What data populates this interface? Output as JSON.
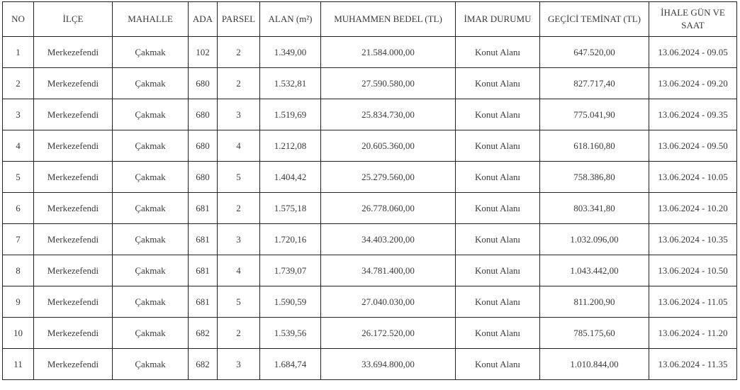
{
  "headers": [
    "NO",
    "İLÇE",
    "MAHALLE",
    "ADA",
    "PARSEL",
    "ALAN (m²)",
    "MUHAMMEN BEDEL (TL)",
    "İMAR DURUMU",
    "GEÇİCİ TEMİNAT (TL)",
    "İHALE GÜN VE SAAT"
  ],
  "rows": [
    [
      "1",
      "Merkezefendi",
      "Çakmak",
      "102",
      "2",
      "1.349,00",
      "21.584.000,00",
      "Konut Alanı",
      "647.520,00",
      "13.06.2024 - 09.05"
    ],
    [
      "2",
      "Merkezefendi",
      "Çakmak",
      "680",
      "2",
      "1.532,81",
      "27.590.580,00",
      "Konut Alanı",
      "827.717,40",
      "13.06.2024 - 09.20"
    ],
    [
      "3",
      "Merkezefendi",
      "Çakmak",
      "680",
      "3",
      "1.519,69",
      "25.834.730,00",
      "Konut Alanı",
      "775.041,90",
      "13.06.2024 - 09.35"
    ],
    [
      "4",
      "Merkezefendi",
      "Çakmak",
      "680",
      "4",
      "1.212,08",
      "20.605.360,00",
      "Konut Alanı",
      "618.160,80",
      "13.06.2024 - 09.50"
    ],
    [
      "5",
      "Merkezefendi",
      "Çakmak",
      "680",
      "5",
      "1.404,42",
      "25.279.560,00",
      "Konut Alanı",
      "758.386,80",
      "13.06.2024 - 10.05"
    ],
    [
      "6",
      "Merkezefendi",
      "Çakmak",
      "681",
      "2",
      "1.575,18",
      "26.778.060,00",
      "Konut Alanı",
      "803.341,80",
      "13.06.2024 - 10.20"
    ],
    [
      "7",
      "Merkezefendi",
      "Çakmak",
      "681",
      "3",
      "1.720,16",
      "34.403.200,00",
      "Konut Alanı",
      "1.032.096,00",
      "13.06.2024 - 10.35"
    ],
    [
      "8",
      "Merkezefendi",
      "Çakmak",
      "681",
      "4",
      "1.739,07",
      "34.781.400,00",
      "Konut Alanı",
      "1.043.442,00",
      "13.06.2024 - 10.50"
    ],
    [
      "9",
      "Merkezefendi",
      "Çakmak",
      "681",
      "5",
      "1.590,59",
      "27.040.030,00",
      "Konut Alanı",
      "811.200,90",
      "13.06.2024 - 11.05"
    ],
    [
      "10",
      "Merkezefendi",
      "Çakmak",
      "682",
      "2",
      "1.539,56",
      "26.172.520,00",
      "Konut Alanı",
      "785.175,60",
      "13.06.2024 - 11.20"
    ],
    [
      "11",
      "Merkezefendi",
      "Çakmak",
      "682",
      "3",
      "1.684,74",
      "33.694.800,00",
      "Konut Alanı",
      "1.010.844,00",
      "13.06.2024 - 11.35"
    ]
  ]
}
